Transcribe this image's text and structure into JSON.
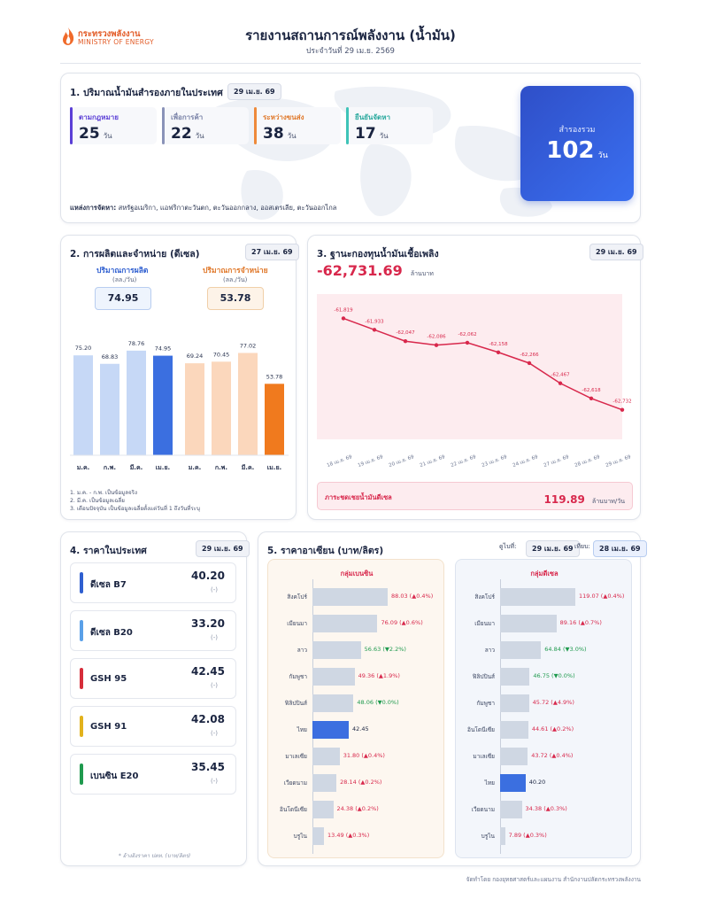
{
  "header": {
    "logo_th": "กระทรวงพลังงาน",
    "logo_en": "MINISTRY OF ENERGY",
    "title": "รายงานสถานการณ์พลังงาน (น้ำมัน)",
    "subtitle": "ประจำวันที่ 29 เม.ย. 2569"
  },
  "reserves": {
    "title": "1. ปริมาณน้ำมันสำรองภายในประเทศ",
    "date": "29 เม.ย. 69",
    "items": [
      {
        "label": "ตามกฎหมาย",
        "value": "25",
        "unit": "วัน",
        "color": "#5b3fd6"
      },
      {
        "label": "เพื่อการค้า",
        "value": "22",
        "unit": "วัน",
        "color": "#8a93b8"
      },
      {
        "label": "ระหว่างขนส่ง",
        "value": "38",
        "unit": "วัน",
        "color": "#ee8a3a"
      },
      {
        "label": "ยืนยันจัดหา",
        "value": "17",
        "unit": "วัน",
        "color": "#3fc4b8"
      }
    ],
    "total_label": "สำรองรวม",
    "total_value": "102",
    "total_unit": "วัน",
    "source_label": "แหล่งการจัดหา:",
    "source_text": "สหรัฐอเมริกา, แอฟริกาตะวันตก, ตะวันออกกลาง, ออสเตรเลีย, ตะวันออกไกล"
  },
  "production": {
    "title": "2. การผลิตและจำหน่าย (ดีเซล)",
    "date": "27 เม.ย. 69",
    "prod_label": "ปริมาณการผลิต",
    "sales_label": "ปริมาณการจำหน่าย",
    "unit": "(ลล./วัน)",
    "prod_value": "74.95",
    "sales_value": "53.78",
    "prod_bars": [
      {
        "month": "ม.ค.",
        "value": 75.2,
        "label": "75.20"
      },
      {
        "month": "ก.พ.",
        "value": 68.83,
        "label": "68.83"
      },
      {
        "month": "มี.ค.",
        "value": 78.76,
        "label": "78.76"
      },
      {
        "month": "เม.ย.",
        "value": 74.95,
        "label": "74.95"
      }
    ],
    "sales_bars": [
      {
        "month": "ม.ค.",
        "value": 69.24,
        "label": "69.24"
      },
      {
        "month": "ก.พ.",
        "value": 70.45,
        "label": "70.45"
      },
      {
        "month": "มี.ค.",
        "value": 77.02,
        "label": "77.02"
      },
      {
        "month": "เม.ย.",
        "value": 53.78,
        "label": "53.78"
      }
    ],
    "notes": [
      "1. ม.ค. - ก.พ. เป็นข้อมูลจริง",
      "2. มี.ค. เป็นข้อมูลเฉลี่ย",
      "3. เดือนปัจจุบัน เป็นข้อมูลเฉลี่ยตั้งแต่วันที่ 1 ถึงวันที่ระบุ"
    ]
  },
  "fund": {
    "title": "3. ฐานะกองทุนน้ำมันเชื้อเพลิง",
    "date": "29 เม.ย. 69",
    "balance": "-62,731.69",
    "balance_unit": "ล้านบาท",
    "subsidy_label": "ภาระชดเชยน้ำมันดีเซล",
    "subsidy_value": "119.89",
    "subsidy_unit": "ล้านบาท/วัน"
  },
  "chart_data": {
    "type": "line",
    "x": [
      "18 เม.ย. 69",
      "19 เม.ย. 69",
      "20 เม.ย. 69",
      "21 เม.ย. 69",
      "22 เม.ย. 69",
      "23 เม.ย. 69",
      "24 เม.ย. 69",
      "27 เม.ย. 69",
      "28 เม.ย. 69",
      "29 เม.ย. 69"
    ],
    "y": [
      -61819,
      -61933,
      -62047,
      -62086,
      -62062,
      -62158,
      -62266,
      -62467,
      -62618,
      -62732
    ],
    "labels": [
      "-61,819",
      "-61,933",
      "-62,047",
      "-62,086",
      "-62,062",
      "-62,158",
      "-62,266",
      "-62,467",
      "-62,618",
      "-62,732"
    ],
    "ylim": [
      -62850,
      -61700
    ]
  },
  "domestic": {
    "title": "4. ราคาในประเทศ",
    "date": "29 เม.ย. 69",
    "items": [
      {
        "name": "ดีเซล B7",
        "value": "40.20",
        "change": "(-)",
        "color": "#2f5fd0"
      },
      {
        "name": "ดีเซล B20",
        "value": "33.20",
        "change": "(-)",
        "color": "#5aa0e8"
      },
      {
        "name": "GSH 95",
        "value": "42.45",
        "change": "(-)",
        "color": "#d62d3a"
      },
      {
        "name": "GSH 91",
        "value": "42.08",
        "change": "(-)",
        "color": "#e2b21c"
      },
      {
        "name": "เบนซิน E20",
        "value": "35.45",
        "change": "(-)",
        "color": "#1f9a4e"
      }
    ],
    "note": "* อ้างอิงราคา ปตท. (บาท/ลิตร)"
  },
  "asean": {
    "title": "5. ราคาอาเซียน (บาท/ลิตร)",
    "date_label_1": "ดูไบที่:",
    "date_1": "29 เม.ย. 69",
    "date_label_2": "เทียบ:",
    "date_2": "28 เม.ย. 69",
    "gasoline": {
      "title": "กลุ่มเบนซิน",
      "rows": [
        {
          "country": "สิงคโปร์",
          "value": 88.03,
          "text": "88.03 (▲0.4%)",
          "dir": "up"
        },
        {
          "country": "เมียนมา",
          "value": 76.09,
          "text": "76.09 (▲0.6%)",
          "dir": "up"
        },
        {
          "country": "ลาว",
          "value": 56.63,
          "text": "56.63 (▼2.2%)",
          "dir": "down"
        },
        {
          "country": "กัมพูชา",
          "value": 49.36,
          "text": "49.36 (▲1.9%)",
          "dir": "up"
        },
        {
          "country": "ฟิลิปปินส์",
          "value": 48.06,
          "text": "48.06 (▼0.0%)",
          "dir": "down"
        },
        {
          "country": "ไทย",
          "value": 42.45,
          "text": "42.45",
          "dir": "thai"
        },
        {
          "country": "มาเลเซีย",
          "value": 31.8,
          "text": "31.80 (▲0.4%)",
          "dir": "up"
        },
        {
          "country": "เวียดนาม",
          "value": 28.14,
          "text": "28.14 (▲0.2%)",
          "dir": "up"
        },
        {
          "country": "อินโดนีเซีย",
          "value": 24.38,
          "text": "24.38 (▲0.2%)",
          "dir": "up"
        },
        {
          "country": "บรูไน",
          "value": 13.49,
          "text": "13.49 (▲0.3%)",
          "dir": "up"
        }
      ]
    },
    "diesel": {
      "title": "กลุ่มดีเซล",
      "rows": [
        {
          "country": "สิงคโปร์",
          "value": 119.07,
          "text": "119.07 (▲0.4%)",
          "dir": "up"
        },
        {
          "country": "เมียนมา",
          "value": 89.16,
          "text": "89.16 (▲0.7%)",
          "dir": "up"
        },
        {
          "country": "ลาว",
          "value": 64.84,
          "text": "64.84 (▼3.0%)",
          "dir": "down"
        },
        {
          "country": "ฟิลิปปินส์",
          "value": 46.75,
          "text": "46.75 (▼0.0%)",
          "dir": "down"
        },
        {
          "country": "กัมพูชา",
          "value": 45.72,
          "text": "45.72 (▲4.9%)",
          "dir": "up"
        },
        {
          "country": "อินโดนีเซีย",
          "value": 44.61,
          "text": "44.61 (▲0.2%)",
          "dir": "up"
        },
        {
          "country": "มาเลเซีย",
          "value": 43.72,
          "text": "43.72 (▲0.4%)",
          "dir": "up"
        },
        {
          "country": "ไทย",
          "value": 40.2,
          "text": "40.20",
          "dir": "thai"
        },
        {
          "country": "เวียดนาม",
          "value": 34.38,
          "text": "34.38 (▲0.3%)",
          "dir": "up"
        },
        {
          "country": "บรูไน",
          "value": 7.89,
          "text": "7.89 (▲0.3%)",
          "dir": "up"
        }
      ]
    }
  },
  "footer": "จัดทำโดย กองยุทธศาสตร์และแผนงาน สำนักงานปลัดกระทรวงพลังงาน"
}
